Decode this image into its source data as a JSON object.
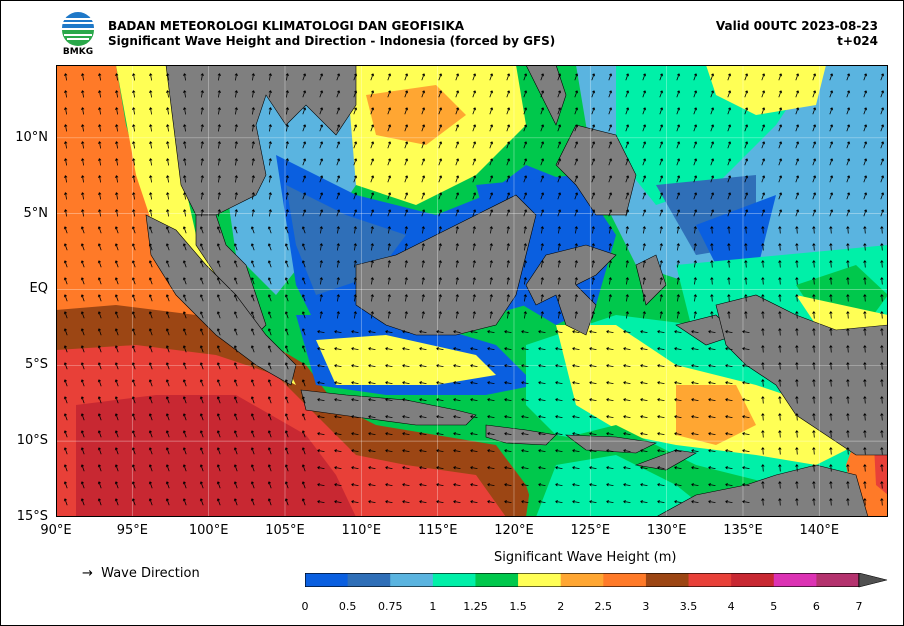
{
  "header": {
    "agency": "BADAN METEOROLOGI KLIMATOLOGI DAN GEOFISIKA",
    "product": "Significant Wave Height and Direction - Indonesia (forced by GFS)",
    "valid": "Valid 00UTC 2023-08-23",
    "lead": "t+024"
  },
  "logo": {
    "text": "BMKG",
    "icon": "bmkg-logo-icon"
  },
  "axes": {
    "lat_labels": [
      "10°N",
      "5°N",
      "EQ",
      "5°S",
      "10°S",
      "15°S"
    ],
    "lat_values": [
      10,
      5,
      0,
      -5,
      -10,
      -15
    ],
    "lon_labels": [
      "90°E",
      "95°E",
      "100°E",
      "105°E",
      "110°E",
      "115°E",
      "120°E",
      "125°E",
      "130°E",
      "135°E",
      "140°E"
    ],
    "lon_values": [
      90,
      95,
      100,
      105,
      110,
      115,
      120,
      125,
      130,
      135,
      140
    ],
    "lon_range": [
      90,
      144.5
    ],
    "lat_range": [
      -15,
      14.8
    ]
  },
  "legend": {
    "arrow_label": "Wave Direction",
    "arrow_icon": "right-arrow-icon"
  },
  "colorbar": {
    "title": "Significant Wave Height (m)",
    "ticks": [
      "0",
      "0.5",
      "0.75",
      "1",
      "1.25",
      "1.5",
      "2",
      "2.5",
      "3",
      "3.5",
      "4",
      "5",
      "6",
      "7"
    ],
    "colors": [
      "#0a5fe0",
      "#2f6fb8",
      "#5ab4e0",
      "#00f0a8",
      "#00c84c",
      "#ffff55",
      "#ffa632",
      "#ff7a28",
      "#9c4614",
      "#e84038",
      "#c82832",
      "#dc32b4",
      "#b4326e"
    ],
    "extend_color": "#505050"
  },
  "map": {
    "land_color": "#7f7f7f",
    "grid": true
  }
}
